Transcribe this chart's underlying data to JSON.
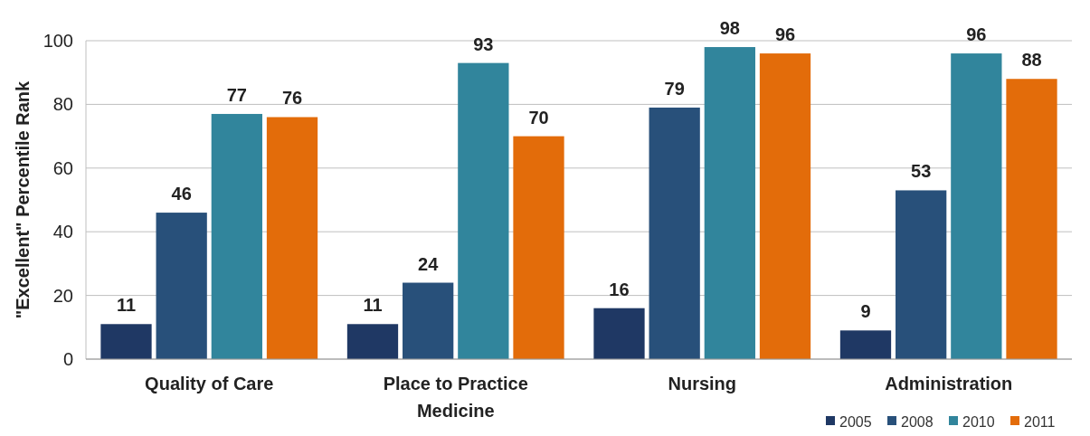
{
  "chart_data": {
    "type": "bar",
    "ylabel": "\"Excellent\" Percentile Rank",
    "categories": [
      "Quality of Care",
      "Place to Practice Medicine",
      "Nursing",
      "Administration"
    ],
    "series": [
      {
        "name": "2005",
        "color": "#1f3864",
        "values": [
          11,
          11,
          16,
          9
        ]
      },
      {
        "name": "2008",
        "color": "#28507a",
        "values": [
          46,
          24,
          79,
          53
        ]
      },
      {
        "name": "2010",
        "color": "#31859c",
        "values": [
          77,
          93,
          98,
          96
        ]
      },
      {
        "name": "2011",
        "color": "#e36c0a",
        "values": [
          76,
          70,
          96,
          88
        ]
      }
    ],
    "ylim": [
      0,
      100
    ],
    "yticks": [
      0,
      20,
      40,
      60,
      80,
      100
    ],
    "grid": "y",
    "data_labels": true,
    "legend": "bottom right"
  }
}
